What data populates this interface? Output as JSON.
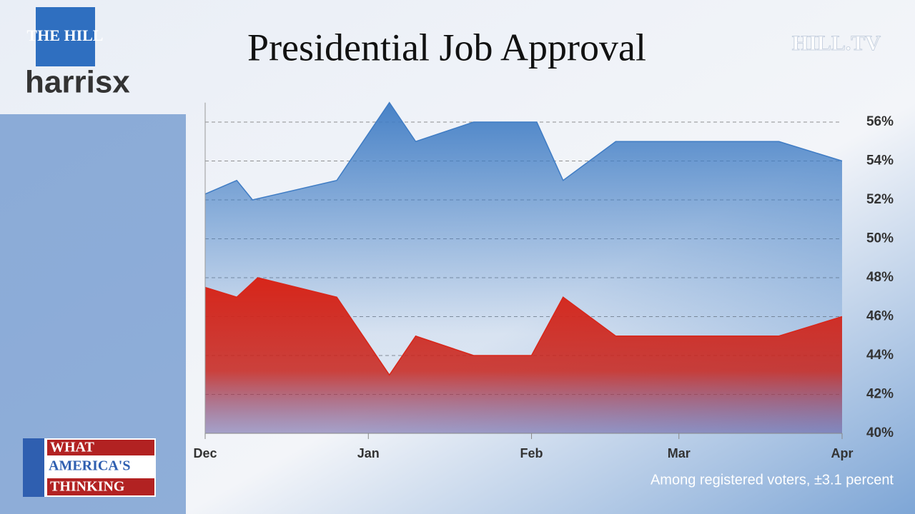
{
  "branding": {
    "top_logo": "THE HILL",
    "partner_logo": "harrisx",
    "network": "HILL.TV",
    "segment": [
      "WHAT",
      "AMERICA'S",
      "THINKING"
    ]
  },
  "chart_data": {
    "type": "area",
    "title": "Presidential Job Approval",
    "note": "Among registered voters, ±3.1 percent",
    "x": [
      0,
      6,
      9,
      25,
      35,
      40,
      51,
      63,
      68,
      78,
      109,
      121
    ],
    "series": [
      {
        "color": "#3f7cc4",
        "x": [
          0,
          6,
          9,
          25,
          35,
          40,
          51,
          63,
          68,
          78,
          109,
          121
        ],
        "values": [
          52.3,
          53,
          52,
          53,
          57,
          55,
          56,
          56,
          53,
          55,
          55,
          54
        ]
      },
      {
        "color": "#d8261a",
        "x": [
          0,
          6,
          10,
          25,
          35,
          40,
          51,
          62,
          68,
          78,
          109,
          121
        ],
        "values": [
          47.5,
          47,
          48,
          47,
          43,
          45,
          44,
          44,
          47,
          45,
          45,
          46
        ]
      }
    ],
    "xlim": [
      0,
      121
    ],
    "xticks": [
      {
        "value": 0,
        "label": "Dec"
      },
      {
        "value": 31,
        "label": "Jan"
      },
      {
        "value": 62,
        "label": "Feb"
      },
      {
        "value": 90,
        "label": "Mar"
      },
      {
        "value": 121,
        "label": "Apr"
      }
    ],
    "ylim": [
      40,
      57
    ],
    "yticks": [
      {
        "value": 40,
        "label": "40%"
      },
      {
        "value": 42,
        "label": "42%"
      },
      {
        "value": 44,
        "label": "44%"
      },
      {
        "value": 46,
        "label": "46%"
      },
      {
        "value": 48,
        "label": "48%"
      },
      {
        "value": 50,
        "label": "50%"
      },
      {
        "value": 52,
        "label": "52%"
      },
      {
        "value": 54,
        "label": "54%"
      },
      {
        "value": 56,
        "label": "56%"
      }
    ],
    "grid": true
  }
}
